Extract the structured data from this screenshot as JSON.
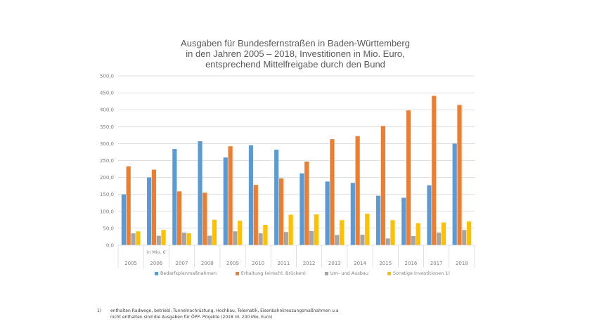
{
  "chart_data": {
    "type": "bar",
    "title": [
      "Ausgaben für Bundesfernstraßen in Baden-Württemberg",
      "in den Jahren 2005 – 2018, Investitionen in Mio. Euro,",
      "entsprechend Mittelfreigabe durch den Bund"
    ],
    "xlabel": "",
    "ylabel": "",
    "unit_note": "in Mio. €",
    "ylim": [
      0,
      500
    ],
    "yticks": [
      0,
      50,
      100,
      150,
      200,
      250,
      300,
      350,
      400,
      450,
      500
    ],
    "ytick_labels": [
      "0,0",
      "50,0",
      "100,0",
      "150,0",
      "200,0",
      "250,0",
      "300,0",
      "350,0",
      "400,0",
      "450,0",
      "500,0"
    ],
    "grid": true,
    "legend_position": "bottom",
    "categories": [
      "2005",
      "2006",
      "2007",
      "2008",
      "2009",
      "2010",
      "2011",
      "2012",
      "2013",
      "2014",
      "2015",
      "2016",
      "2017",
      "2018"
    ],
    "series": [
      {
        "name": "Bedarfsplanmaßnahmen",
        "color": "#5b9bd5",
        "values": [
          150,
          200,
          284,
          307,
          259,
          295,
          282,
          212,
          188,
          184,
          146,
          140,
          177,
          300
        ]
      },
      {
        "name": "Erhaltung (einschl. Brücken)",
        "color": "#ed7d31",
        "values": [
          233,
          223,
          159,
          155,
          292,
          178,
          197,
          247,
          313,
          322,
          352,
          398,
          441,
          414
        ]
      },
      {
        "name": "Um- und Ausbau",
        "color": "#a5a5a5",
        "values": [
          35,
          28,
          37,
          28,
          41,
          35,
          39,
          42,
          30,
          31,
          20,
          27,
          37,
          45
        ]
      },
      {
        "name": "Sonstige Investitionen 1)",
        "color": "#ffc000",
        "values": [
          41,
          45,
          35,
          75,
          72,
          60,
          90,
          91,
          74,
          93,
          74,
          65,
          67,
          70
        ]
      }
    ]
  },
  "footnote": {
    "marker": "1)",
    "line1": "enthalten Radwege, betriebl. Tunnelnachrüstung, Hochbau, Telematik, Eisenbahnkreuzungsmaßnahmen u.a",
    "line2": "nicht enthalten sind die Ausgaben für ÖPP- Projekte (2018 rd. 200 Mio. Euro)"
  }
}
